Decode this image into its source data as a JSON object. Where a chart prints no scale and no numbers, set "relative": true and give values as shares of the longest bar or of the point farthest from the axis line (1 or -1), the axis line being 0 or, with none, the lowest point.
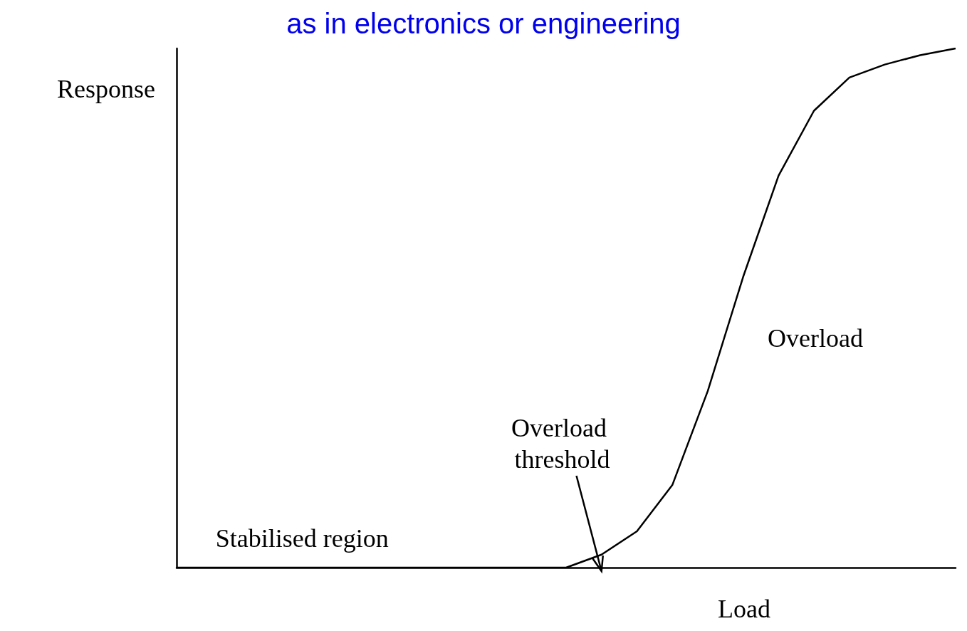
{
  "chart_data": {
    "type": "line",
    "relative": true,
    "title": "as in electronics or engineering",
    "xlabel": "Load",
    "ylabel": "Response",
    "categories": [
      null,
      null,
      null,
      null,
      null,
      null,
      null,
      null,
      null,
      null,
      null,
      null,
      null,
      null,
      null,
      null,
      null,
      null,
      null,
      null,
      null,
      null,
      null
    ],
    "series": [
      {
        "color": "#000000",
        "values": [
          0,
          0,
          0,
          0,
          0,
          0,
          0,
          0,
          0,
          0,
          0,
          0,
          0.025,
          0.07,
          0.159,
          0.34,
          0.56,
          0.755,
          0.88,
          0.944,
          0.969,
          0.987,
          1.0
        ]
      }
    ],
    "annotations": [
      "Stabilised region",
      "Overload threshold",
      "Overload"
    ],
    "grid": false,
    "marker": "none",
    "line_style": "solid"
  }
}
